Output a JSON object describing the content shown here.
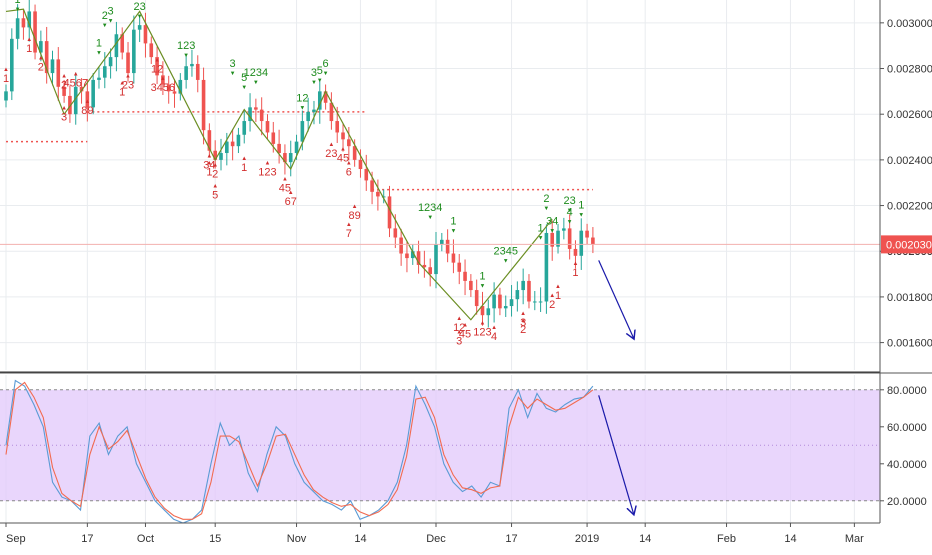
{
  "colors": {
    "up": "#26a69a",
    "down": "#ef5350",
    "zigzag": "#6b8e23",
    "stoch_k": "#5b9bd5",
    "stoch_d": "#f26b50",
    "band_fill": "#e2c8fb",
    "projection": "#1a1aaa",
    "price_badge": "#ef5350",
    "sell_setup": "#1e8c1e",
    "buy_setup": "#d32f2f",
    "grid": "#e9ecef",
    "axis_text": "#333333"
  },
  "chart_data": [
    {
      "type": "candlestick",
      "title": "",
      "price_axis": {
        "range": [
          0.00148,
          0.0031
        ],
        "ticks": [
          "0.001600",
          "0.001800",
          "0.002000",
          "0.002200",
          "0.002400",
          "0.002600",
          "0.002800",
          "0.003000"
        ],
        "last_price_label": "0.002030",
        "partly_hidden_label": "0.002000"
      },
      "time_axis": {
        "range": [
          0,
          148
        ],
        "labels": [
          {
            "t": 0,
            "text": "Sep"
          },
          {
            "t": 14,
            "text": "17"
          },
          {
            "t": 24,
            "text": "Oct"
          },
          {
            "t": 36,
            "text": "15"
          },
          {
            "t": 50,
            "text": "Nov"
          },
          {
            "t": 61,
            "text": "14"
          },
          {
            "t": 74,
            "text": "Dec"
          },
          {
            "t": 87,
            "text": "17"
          },
          {
            "t": 100,
            "text": "2019"
          },
          {
            "t": 110,
            "text": "14"
          },
          {
            "t": 124,
            "text": "Feb"
          },
          {
            "t": 135,
            "text": "14"
          },
          {
            "t": 146,
            "text": "Mar"
          }
        ]
      },
      "close_series": [
        0.0027,
        0.00293,
        0.00302,
        0.00298,
        0.00305,
        0.00287,
        0.00292,
        0.00278,
        0.00284,
        0.00272,
        0.00268,
        0.0026,
        0.00272,
        0.0027,
        0.00263,
        0.00275,
        0.00276,
        0.00281,
        0.00285,
        0.00295,
        0.00287,
        0.00278,
        0.00297,
        0.00299,
        0.00291,
        0.00285,
        0.00277,
        0.00273,
        0.0027,
        0.00269,
        0.00275,
        0.00281,
        0.00282,
        0.00275,
        0.00253,
        0.00244,
        0.0024,
        0.00243,
        0.00248,
        0.00246,
        0.00251,
        0.00257,
        0.00263,
        0.00262,
        0.00257,
        0.00252,
        0.00247,
        0.00243,
        0.00239,
        0.00243,
        0.00248,
        0.00257,
        0.00261,
        0.00262,
        0.0027,
        0.00265,
        0.00257,
        0.00252,
        0.00249,
        0.00246,
        0.0024,
        0.00236,
        0.00231,
        0.00226,
        0.00224,
        0.00224,
        0.0021,
        0.00206,
        0.00199,
        0.00197,
        0.002,
        0.00194,
        0.00193,
        0.0019,
        0.00203,
        0.00205,
        0.00199,
        0.00195,
        0.00191,
        0.00187,
        0.00183,
        0.00176,
        0.00172,
        0.00175,
        0.00181,
        0.00175,
        0.00176,
        0.00179,
        0.00183,
        0.00187,
        0.00178,
        0.00178,
        0.00178,
        0.00208,
        0.00202,
        0.00209,
        0.0021,
        0.00201,
        0.00198,
        0.00209,
        0.00206,
        0.00203
      ],
      "annotations": {
        "resistance_lines": [
          {
            "price": 0.00248,
            "t_from": 0,
            "t_to": 14
          },
          {
            "price": 0.00261,
            "t_from": 14,
            "t_to": 62
          },
          {
            "price": 0.00227,
            "t_from": 63,
            "t_to": 101
          }
        ],
        "zigzag": [
          {
            "t": 0,
            "p": 0.00305
          },
          {
            "t": 3,
            "p": 0.00306
          },
          {
            "t": 10,
            "p": 0.0026
          },
          {
            "t": 23,
            "p": 0.00305
          },
          {
            "t": 36,
            "p": 0.0024
          },
          {
            "t": 41,
            "p": 0.00262
          },
          {
            "t": 49,
            "p": 0.00236
          },
          {
            "t": 55,
            "p": 0.0027
          },
          {
            "t": 71,
            "p": 0.00195
          },
          {
            "t": 80,
            "p": 0.0017
          },
          {
            "t": 94,
            "p": 0.00214
          }
        ],
        "projection_arrow": {
          "t_from": 102,
          "p_from": 0.00196,
          "t_to": 108,
          "p_to": 0.00162
        },
        "sell_setup_labels": [
          {
            "t": 2,
            "p": 0.00306,
            "text": "1"
          },
          {
            "t": 17,
            "p": 0.00299,
            "text": "2"
          },
          {
            "t": 18,
            "p": 0.00301,
            "text": "3"
          },
          {
            "t": 16,
            "p": 0.00287,
            "text": "1"
          },
          {
            "t": 23,
            "p": 0.00303,
            "text": "23"
          },
          {
            "t": 31,
            "p": 0.00286,
            "text": "123"
          },
          {
            "t": 39,
            "p": 0.00278,
            "text": "3"
          },
          {
            "t": 41,
            "p": 0.00272,
            "text": "5"
          },
          {
            "t": 43,
            "p": 0.00274,
            "text": "1234"
          },
          {
            "t": 51,
            "p": 0.00263,
            "text": "12"
          },
          {
            "t": 53,
            "p": 0.00274,
            "text": "3"
          },
          {
            "t": 54,
            "p": 0.00275,
            "text": "5"
          },
          {
            "t": 55,
            "p": 0.00278,
            "text": "6"
          },
          {
            "t": 73,
            "p": 0.00215,
            "text": "1234"
          },
          {
            "t": 77,
            "p": 0.00209,
            "text": "1"
          },
          {
            "t": 82,
            "p": 0.00185,
            "text": "1"
          },
          {
            "t": 86,
            "p": 0.00196,
            "text": "2345"
          },
          {
            "t": 93,
            "p": 0.00219,
            "text": "2"
          },
          {
            "t": 94,
            "p": 0.00209,
            "text": "34"
          },
          {
            "t": 92,
            "p": 0.00206,
            "text": "1"
          },
          {
            "t": 97,
            "p": 0.00218,
            "text": "23"
          },
          {
            "t": 97,
            "p": 0.00213,
            "text": "4"
          },
          {
            "t": 99,
            "p": 0.00216,
            "text": "1"
          }
        ],
        "buy_setup_labels": [
          {
            "t": 0,
            "p": 0.00279,
            "text": "1"
          },
          {
            "t": 4,
            "p": 0.00292,
            "text": "1"
          },
          {
            "t": 6,
            "p": 0.00284,
            "text": "2"
          },
          {
            "t": 10,
            "p": 0.00276,
            "text": "2"
          },
          {
            "t": 12,
            "p": 0.00277,
            "text": "4567"
          },
          {
            "t": 10,
            "p": 0.00262,
            "text": "3"
          },
          {
            "t": 14,
            "p": 0.00265,
            "text": "89"
          },
          {
            "t": 21,
            "p": 0.00276,
            "text": "23"
          },
          {
            "t": 20,
            "p": 0.00273,
            "text": "1"
          },
          {
            "t": 26,
            "p": 0.00283,
            "text": "12"
          },
          {
            "t": 27,
            "p": 0.00275,
            "text": "3456"
          },
          {
            "t": 35,
            "p": 0.00238,
            "text": "1"
          },
          {
            "t": 36,
            "p": 0.00237,
            "text": "2"
          },
          {
            "t": 35,
            "p": 0.00241,
            "text": "34"
          },
          {
            "t": 36,
            "p": 0.00228,
            "text": "5"
          },
          {
            "t": 41,
            "p": 0.0024,
            "text": "1"
          },
          {
            "t": 45,
            "p": 0.00238,
            "text": "123"
          },
          {
            "t": 48,
            "p": 0.00231,
            "text": "45"
          },
          {
            "t": 49,
            "p": 0.00225,
            "text": "67"
          },
          {
            "t": 56,
            "p": 0.00246,
            "text": "23"
          },
          {
            "t": 58,
            "p": 0.00244,
            "text": "45"
          },
          {
            "t": 59,
            "p": 0.00238,
            "text": "6"
          },
          {
            "t": 60,
            "p": 0.00219,
            "text": "89"
          },
          {
            "t": 59,
            "p": 0.00211,
            "text": "7"
          },
          {
            "t": 78,
            "p": 0.0017,
            "text": "12"
          },
          {
            "t": 78,
            "p": 0.00164,
            "text": "3"
          },
          {
            "t": 79,
            "p": 0.00167,
            "text": "45"
          },
          {
            "t": 82,
            "p": 0.00168,
            "text": "123"
          },
          {
            "t": 84,
            "p": 0.00166,
            "text": "4"
          },
          {
            "t": 89,
            "p": 0.00169,
            "text": "2"
          },
          {
            "t": 89,
            "p": 0.00172,
            "text": "3"
          },
          {
            "t": 95,
            "p": 0.00184,
            "text": "1"
          },
          {
            "t": 94,
            "p": 0.0018,
            "text": "2"
          },
          {
            "t": 98,
            "p": 0.00194,
            "text": "1"
          }
        ]
      }
    },
    {
      "type": "line",
      "title": "",
      "y_axis": {
        "range": [
          8,
          88
        ],
        "ticks": [
          "20.0000",
          "40.0000",
          "60.0000",
          "80.0000"
        ]
      },
      "band": [
        20,
        80
      ],
      "mid_line": 50,
      "series": [
        {
          "key": "k",
          "values": [
            50,
            85,
            82,
            72,
            60,
            30,
            22,
            20,
            15,
            55,
            62,
            45,
            55,
            60,
            40,
            30,
            20,
            15,
            10,
            8,
            10,
            15,
            40,
            62,
            50,
            55,
            35,
            25,
            45,
            60,
            55,
            40,
            30,
            25,
            20,
            18,
            15,
            20,
            10,
            12,
            15,
            20,
            30,
            50,
            82,
            72,
            60,
            40,
            30,
            25,
            28,
            22,
            30,
            28,
            70,
            80,
            65,
            78,
            70,
            68,
            72,
            75,
            76,
            82
          ]
        },
        {
          "key": "d",
          "values": [
            45,
            80,
            84,
            76,
            65,
            38,
            24,
            20,
            17,
            45,
            60,
            48,
            52,
            58,
            45,
            32,
            22,
            16,
            12,
            10,
            10,
            13,
            30,
            55,
            55,
            52,
            40,
            28,
            40,
            55,
            56,
            45,
            34,
            26,
            22,
            19,
            17,
            18,
            14,
            12,
            14,
            18,
            26,
            44,
            75,
            76,
            65,
            45,
            34,
            27,
            26,
            24,
            27,
            28,
            60,
            76,
            70,
            75,
            72,
            69,
            70,
            73,
            76,
            80
          ]
        }
      ],
      "projection_arrow": {
        "t_from": 102,
        "v_from": 77,
        "t_to": 108,
        "v_to": 13
      }
    }
  ]
}
